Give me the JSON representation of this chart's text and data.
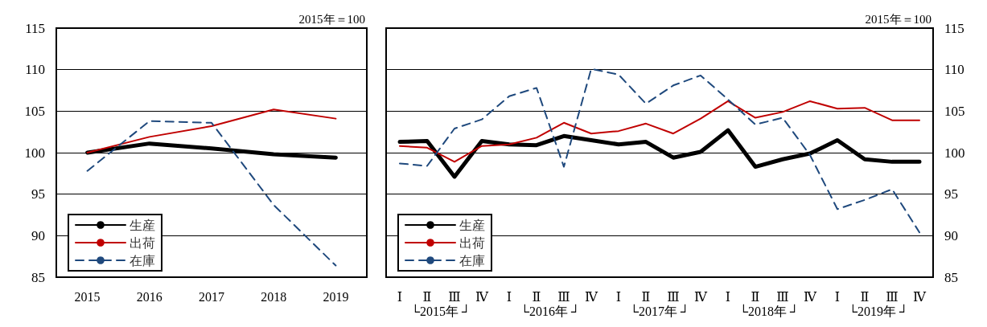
{
  "chart_data": [
    {
      "type": "line",
      "subtitle": "2015年＝100",
      "categories": [
        "2015",
        "2016",
        "2017",
        "2018",
        "2019"
      ],
      "ylim": [
        85,
        115
      ],
      "yticks": [
        85,
        90,
        95,
        100,
        105,
        110,
        115
      ],
      "grid": "y",
      "legend": "bottom left",
      "tick_labels": "xy",
      "series": [
        {
          "name": "生産",
          "color": "#000000",
          "line_style": "solid",
          "values": [
            100,
            101.1,
            100.5,
            99.8,
            99.4
          ]
        },
        {
          "name": "出荷",
          "color": "#c00000",
          "line_style": "solid",
          "values": [
            100,
            101.9,
            103.2,
            105.2,
            104.1
          ]
        },
        {
          "name": "在庫",
          "color": "#1f497d",
          "line_style": "dashed",
          "values": [
            97.8,
            103.8,
            103.6,
            93.7,
            86.4
          ]
        }
      ]
    },
    {
      "type": "line",
      "subtitle": "2015年＝100",
      "categories": [
        "Ⅰ",
        "Ⅱ",
        "Ⅲ",
        "Ⅳ",
        "Ⅰ",
        "Ⅱ",
        "Ⅲ",
        "Ⅳ",
        "Ⅰ",
        "Ⅱ",
        "Ⅲ",
        "Ⅳ",
        "Ⅰ",
        "Ⅱ",
        "Ⅲ",
        "Ⅳ",
        "Ⅰ",
        "Ⅱ",
        "Ⅲ",
        "Ⅳ"
      ],
      "annotations": [
        "└2015年 ┘",
        "└2016年 ┘",
        "└2017年 ┘",
        "└2018年 ┘",
        "└2019年 ┘"
      ],
      "ylim": [
        85,
        115
      ],
      "yticks": [
        85,
        90,
        95,
        100,
        105,
        110,
        115
      ],
      "grid": "y",
      "legend": "bottom left",
      "series": [
        {
          "name": "生産",
          "color": "#000000",
          "line_style": "solid",
          "values": [
            101.3,
            101.4,
            97.1,
            101.4,
            101.0,
            100.9,
            102.0,
            101.5,
            101.0,
            101.3,
            99.4,
            100.1,
            102.7,
            98.3,
            99.2,
            99.9,
            101.5,
            99.2,
            98.9,
            98.9
          ]
        },
        {
          "name": "出荷",
          "color": "#c00000",
          "line_style": "solid",
          "values": [
            100.8,
            100.6,
            98.9,
            100.8,
            101.0,
            101.8,
            103.6,
            102.3,
            102.6,
            103.5,
            102.3,
            104.1,
            106.2,
            104.2,
            104.9,
            106.2,
            105.3,
            105.4,
            103.9,
            103.9
          ]
        },
        {
          "name": "在庫",
          "color": "#1f497d",
          "line_style": "dashed",
          "values": [
            98.7,
            98.4,
            102.9,
            104.0,
            106.8,
            107.8,
            98.3,
            110.1,
            109.4,
            105.9,
            108.1,
            109.3,
            106.4,
            103.4,
            104.2,
            99.7,
            93.2,
            94.3,
            95.6,
            90.4
          ]
        }
      ]
    }
  ]
}
